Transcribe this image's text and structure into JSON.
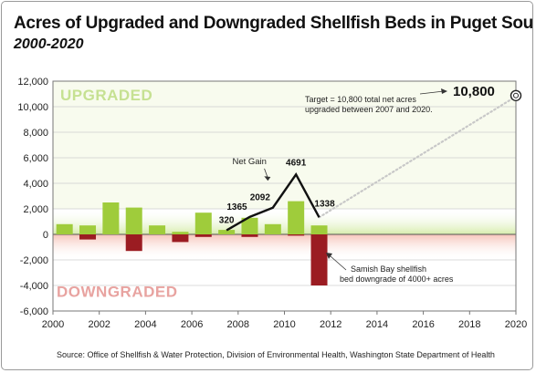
{
  "title": "Acres of Upgraded and Downgraded Shellfish Beds in Puget Sound",
  "subtitle": "2000-2020",
  "source": "Source: Office of Shellfish & Water Protection, Division of Environmental Health, Washington State Department of Health",
  "colors": {
    "upgraded": "#9fcc3b",
    "downgraded": "#9b1c22",
    "upgraded_band": "#d6ecab",
    "downgraded_band": "#f6c4b9",
    "net_line": "#111111",
    "target_line": "#c8c8c8"
  },
  "chart_data": {
    "type": "bar",
    "xlabel": "",
    "ylabel": "",
    "xlim": [
      2000,
      2020
    ],
    "ylim": [
      -6000,
      12000
    ],
    "x_ticks": [
      "2000",
      "2002",
      "2004",
      "2006",
      "2008",
      "2010",
      "2012",
      "2014",
      "2016",
      "2018",
      "2020"
    ],
    "y_ticks": [
      "12,000",
      "10,000",
      "8,000",
      "6,000",
      "4,000",
      "2,000",
      "0",
      "-2,000",
      "-4,000",
      "-6,000"
    ],
    "grid": true,
    "region_labels": {
      "upgraded": "UPGRADED",
      "downgraded": "DOWNGRADED"
    },
    "series": [
      {
        "name": "Upgraded",
        "color": "#9fcc3b",
        "x": [
          2000,
          2001,
          2002,
          2003,
          2004,
          2005,
          2006,
          2007,
          2008,
          2009,
          2010,
          2011
        ],
        "values": [
          800,
          700,
          2500,
          2100,
          700,
          200,
          1700,
          350,
          1300,
          800,
          2600,
          700
        ]
      },
      {
        "name": "Downgraded",
        "color": "#9b1c22",
        "x": [
          2000,
          2001,
          2002,
          2003,
          2004,
          2005,
          2006,
          2007,
          2008,
          2009,
          2010,
          2011
        ],
        "values": [
          0,
          -400,
          0,
          -1300,
          0,
          -600,
          -200,
          0,
          -200,
          0,
          -100,
          -4000
        ]
      },
      {
        "name": "Net Gain",
        "type": "line",
        "x": [
          2007,
          2008,
          2009,
          2010,
          2011
        ],
        "values": [
          320,
          1365,
          2092,
          4691,
          1338
        ],
        "labels": [
          "320",
          "1365",
          "2092",
          "4691",
          "1338"
        ]
      },
      {
        "name": "Target",
        "type": "line",
        "style": "dotted",
        "x": [
          2011,
          2020
        ],
        "values": [
          1338,
          10800
        ]
      }
    ],
    "annotations": {
      "net_gain": "Net Gain",
      "target_text_1": "Target = 10,800 total net acres",
      "target_text_2": "upgraded between 2007 and 2020.",
      "target_value": "10,800",
      "samish_1": "Samish Bay shellfish",
      "samish_2": "bed downgrade of 4000+ acres"
    }
  }
}
